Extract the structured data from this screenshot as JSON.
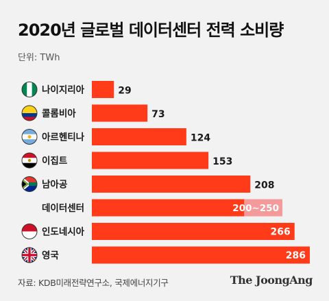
{
  "title": "2020년 글로벌 데이터센터 전력 소비량",
  "unit_label": "단위: TWh",
  "source": "자료: KDB미래전략연구소, 국제에너지기구",
  "brand": "The JoongAng",
  "colors": {
    "bar": "#ff3b1a",
    "range_extension": "#f59a9a",
    "background": "#f2f2f2"
  },
  "chart_data": {
    "type": "bar",
    "orientation": "horizontal",
    "title": "2020년 글로벌 데이터센터 전력 소비량",
    "unit": "TWh",
    "categories": [
      "나이지리아",
      "콜롬비아",
      "아르헨티나",
      "이집트",
      "남아공",
      "데이터센터",
      "인도네시아",
      "영국"
    ],
    "flags": [
      "nigeria-flag-icon",
      "colombia-flag-icon",
      "argentina-flag-icon",
      "egypt-flag-icon",
      "south-africa-flag-icon",
      "",
      "indonesia-flag-icon",
      "uk-flag-icon"
    ],
    "values": [
      29,
      73,
      124,
      153,
      208,
      200,
      266,
      286
    ],
    "range_max": [
      null,
      null,
      null,
      null,
      null,
      250,
      null,
      null
    ],
    "value_labels": [
      "29",
      "73",
      "124",
      "153",
      "208",
      "200~250",
      "266",
      "286"
    ],
    "xlim": [
      0,
      286
    ]
  }
}
